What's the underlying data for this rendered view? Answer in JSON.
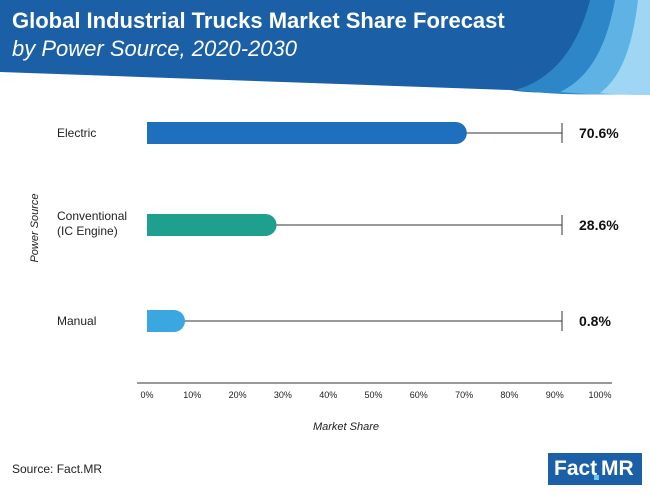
{
  "header": {
    "title": "Global Industrial Trucks Market Share Forecast",
    "subtitle": "by Power Source, 2020-2030"
  },
  "chart_data": {
    "type": "bar",
    "orientation": "horizontal",
    "title": "Global Industrial Trucks Market Share Forecast",
    "subtitle": "by Power Source, 2020-2030",
    "xlabel": "Market Share",
    "ylabel": "Power Source",
    "xlim": [
      0,
      100
    ],
    "xticks": [
      "0%",
      "10%",
      "20%",
      "30%",
      "40%",
      "50%",
      "60%",
      "70%",
      "80%",
      "90%",
      "100%"
    ],
    "categories": [
      {
        "lines": [
          "Electric"
        ],
        "value": 70.6,
        "label": "70.6%",
        "color": "#1f6fbf"
      },
      {
        "lines": [
          "Conventional",
          "(IC Engine)"
        ],
        "value": 28.6,
        "label": "28.6%",
        "color": "#1fa08e"
      },
      {
        "lines": [
          "Manual"
        ],
        "value": 0.8,
        "label": "0.8%",
        "color": "#3aa7e0"
      }
    ]
  },
  "footer": {
    "source": "Source: Fact.MR",
    "logo_left": "Fact",
    "logo_right": "MR"
  }
}
